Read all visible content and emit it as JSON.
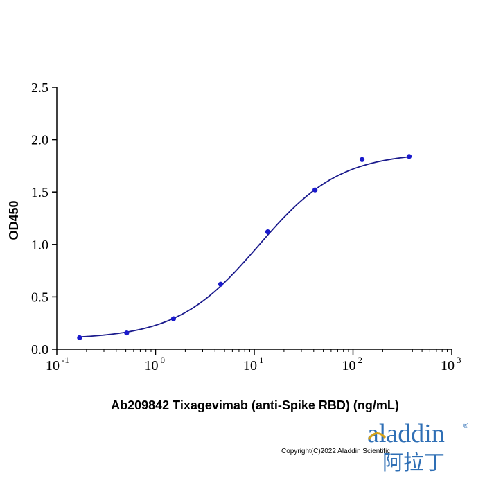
{
  "chart_data": {
    "type": "scatter",
    "xlabel": "Ab209842 Tixagevimab (anti-Spike RBD) (ng/mL)",
    "ylabel": "OD450",
    "xscale": "log",
    "xlim": [
      0.1,
      1000
    ],
    "ylim": [
      0,
      2.5
    ],
    "x_ticks": [
      {
        "base": "10",
        "exp": "-1",
        "value": 0.1
      },
      {
        "base": "10",
        "exp": "0",
        "value": 1
      },
      {
        "base": "10",
        "exp": "1",
        "value": 10
      },
      {
        "base": "10",
        "exp": "2",
        "value": 100
      },
      {
        "base": "10",
        "exp": "3",
        "value": 1000
      }
    ],
    "y_ticks": [
      "0.0",
      "0.5",
      "1.0",
      "1.5",
      "2.0",
      "2.5"
    ],
    "grid": false,
    "series": [
      {
        "x": [
          0.17,
          0.51,
          1.52,
          4.57,
          13.7,
          41.2,
          123.5,
          370.4
        ],
        "y": [
          0.11,
          0.155,
          0.29,
          0.62,
          1.12,
          1.52,
          1.81,
          1.84
        ],
        "color": "#1a1acc",
        "fit": "4PL sigmoid",
        "fit_color": "#1a1a8c"
      }
    ]
  },
  "footer": {
    "copyright": "Copyright(C)2022 Aladdin Scientific",
    "logo_text": "aladdin",
    "logo_cn": "阿拉丁",
    "logo_mark": "®",
    "logo_color": "#2f6fb5",
    "logo_accent": "#d4a21a"
  }
}
